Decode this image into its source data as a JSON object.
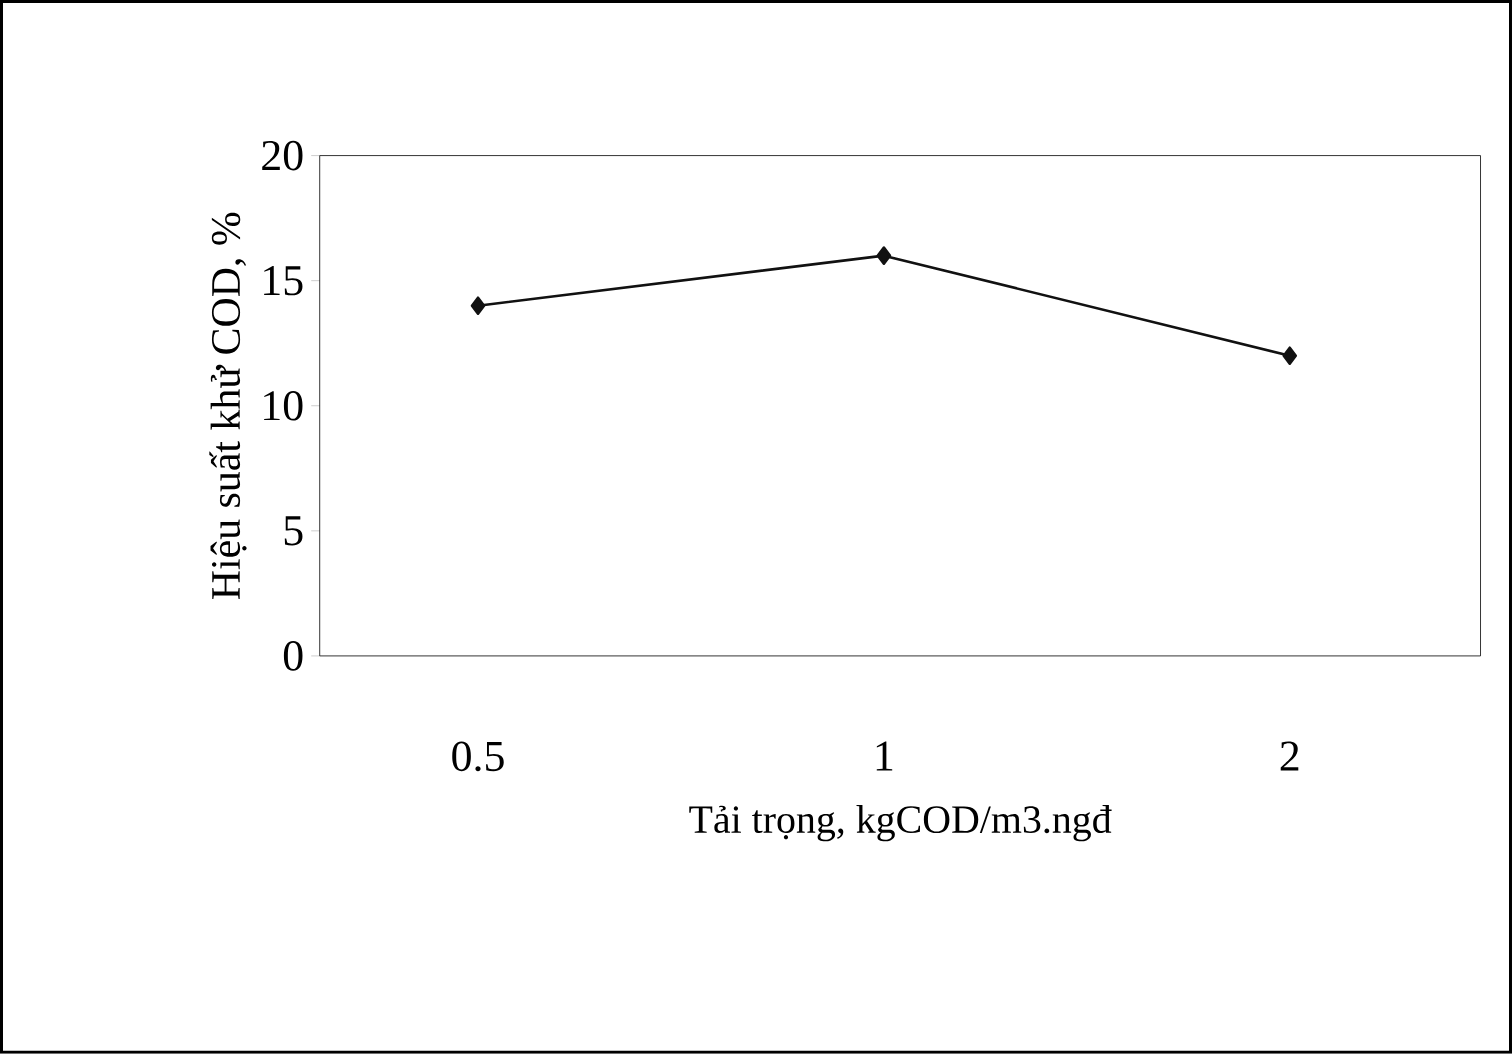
{
  "chart_data": {
    "type": "line",
    "xlabel": "Tải trọng, kgCOD/m3.ngđ",
    "ylabel": "Hiệu suất khử COD, %",
    "categories": [
      "0.5",
      "1",
      "2"
    ],
    "values": [
      14,
      16,
      12
    ],
    "color": "#111111",
    "marker": "diamond",
    "line_style": "solid",
    "ylim": [
      0,
      20
    ],
    "yticks": [
      0,
      5,
      10,
      15,
      20
    ],
    "grid": false
  }
}
